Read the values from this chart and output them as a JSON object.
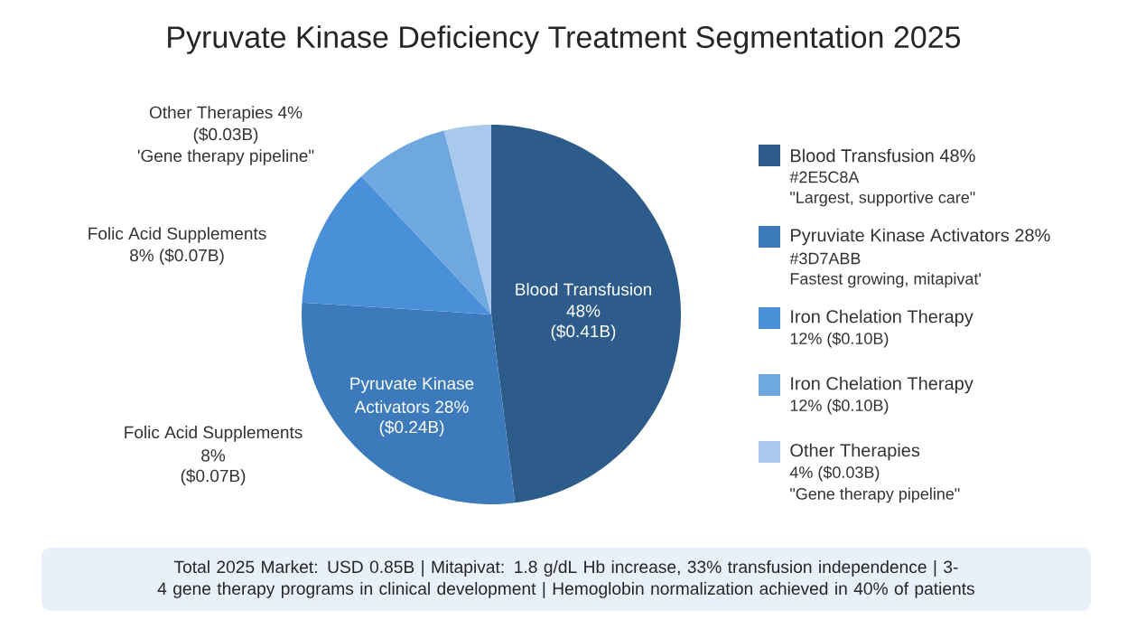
{
  "chart_data": {
    "type": "pie",
    "title": "Pyruvate Kinase Deficiency Treatment Segmentation 2025",
    "categories": [
      "Blood Transfusion 48%",
      "Pyruviate Kinase Activators 28%",
      "Iron Chelation Therapy",
      "Iron Chelation Therapy",
      "Other Therapies"
    ],
    "values": [
      48,
      28,
      12,
      8,
      4
    ],
    "colors": [
      "#2e5c8a",
      "#3d7abb",
      "#4a90d9",
      "#6fa8e0",
      "#a9c9ec"
    ],
    "legend": "right",
    "annotations": [
      "Other Therapies 4%",
      "($0.03B)",
      "'Gene therapy pipeline\"",
      "Folic Acid Supplements",
      "8% ($0.07B)",
      "Folic Acid Supplements",
      "8%",
      "($0.07B)",
      "Blood Transfusion",
      "48%",
      "($0.41B)",
      "Pyruvate Kinase",
      "Activators 28%",
      "($0.24B)",
      "#2E5C8A",
      "\"Largest, supportive care\"",
      "#3D7ABB",
      "Fastest growing, mitapivat'",
      "12% ($0.10B)",
      "12% ($0.10B)",
      "4% ($0.03B)",
      "\"Gene therapy pipeline\"",
      "Total 2025 Market: USD 0.85B | Mitapivat: 1.8 g/dL Hb increase, 33% transfusion independence | 3-4 gene therapy programs in clinical development | Hemoglobin normalization achieved in 40% of patients"
    ]
  }
}
